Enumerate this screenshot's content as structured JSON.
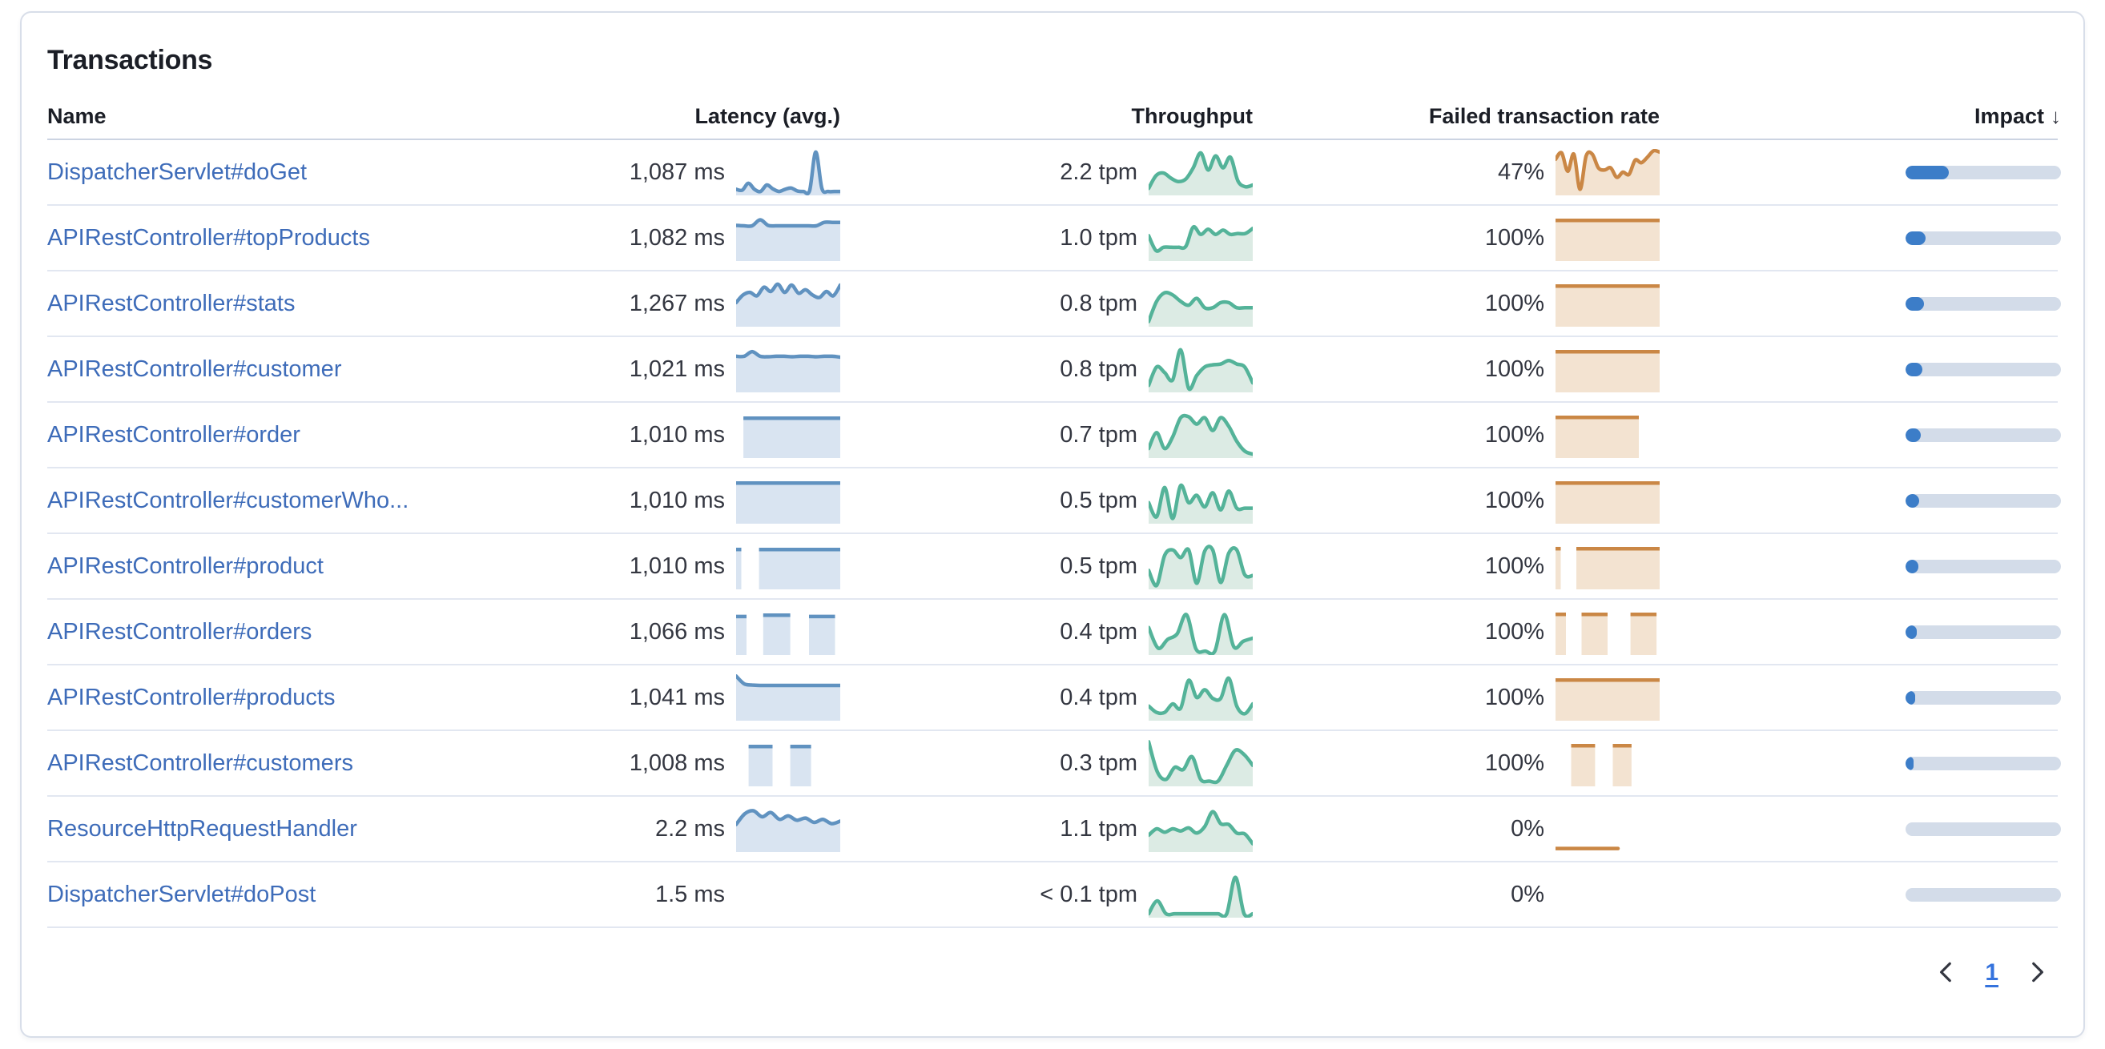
{
  "panel": {
    "title": "Transactions"
  },
  "columns": {
    "name": "Name",
    "latency": "Latency (avg.)",
    "throughput": "Throughput",
    "failed": "Failed transaction rate",
    "impact": "Impact",
    "sort_icon": "↓",
    "sorted_by": "Impact",
    "sort_direction": "desc"
  },
  "colors": {
    "latency": {
      "stroke": "#6092c0",
      "fill": "#d9e4f1"
    },
    "throughput": {
      "stroke": "#54b399",
      "fill": "#dcebe4"
    },
    "failed": {
      "stroke": "#ca8745",
      "fill": "#f3e3d1"
    },
    "impact_fill": "#3c7dc8",
    "impact_track": "#d3dce9",
    "link": "#3e6cb9"
  },
  "pagination": {
    "page": "1",
    "prev_icon": "chevron-left",
    "next_icon": "chevron-right"
  },
  "rows": [
    {
      "name": "DispatcherServlet#doGet",
      "latency": "1,087 ms",
      "throughput": "2.2 tpm",
      "failed_rate": "47%",
      "impact_pct": 28,
      "latency_spark": {
        "kind": "line",
        "points": [
          0.1,
          0.08,
          0.24,
          0.1,
          0.05,
          0.2,
          0.11,
          0.05,
          0.1,
          0.13,
          0.06,
          0.05,
          0.07,
          0.97,
          0.12,
          0.05,
          0.05,
          0.05
        ]
      },
      "throughput_spark": {
        "kind": "line",
        "points": [
          0.12,
          0.42,
          0.48,
          0.36,
          0.28,
          0.34,
          0.6,
          0.95,
          0.55,
          0.88,
          0.6,
          0.85,
          0.3,
          0.16,
          0.2
        ]
      },
      "failed_spark": {
        "kind": "line",
        "points": [
          0.8,
          0.95,
          0.52,
          0.92,
          0.1,
          0.88,
          0.92,
          0.6,
          0.55,
          0.6,
          0.38,
          0.5,
          0.45,
          0.78,
          0.72,
          0.85,
          1.0,
          0.97
        ]
      }
    },
    {
      "name": "APIRestController#topProducts",
      "latency": "1,082 ms",
      "throughput": "1.0 tpm",
      "failed_rate": "100%",
      "impact_pct": 13,
      "latency_spark": {
        "kind": "line",
        "points": [
          0.79,
          0.78,
          0.78,
          0.92,
          0.79,
          0.78,
          0.78,
          0.78,
          0.78,
          0.78,
          0.78,
          0.86,
          0.86,
          0.86
        ]
      },
      "throughput_spark": {
        "kind": "line",
        "points": [
          0.55,
          0.2,
          0.28,
          0.28,
          0.28,
          0.3,
          0.75,
          0.58,
          0.7,
          0.58,
          0.68,
          0.58,
          0.6,
          0.6,
          0.72
        ]
      },
      "failed_spark": {
        "kind": "blocks",
        "segments": [
          [
            0,
            1,
            0.95
          ]
        ]
      }
    },
    {
      "name": "APIRestController#stats",
      "latency": "1,267 ms",
      "throughput": "0.8 tpm",
      "failed_rate": "100%",
      "impact_pct": 12,
      "latency_spark": {
        "kind": "line",
        "points": [
          0.52,
          0.7,
          0.76,
          0.68,
          0.88,
          0.78,
          0.95,
          0.76,
          0.93,
          0.74,
          0.82,
          0.7,
          0.64,
          0.78,
          0.68,
          0.93
        ]
      },
      "throughput_spark": {
        "kind": "line",
        "points": [
          0.08,
          0.55,
          0.75,
          0.7,
          0.55,
          0.46,
          0.62,
          0.4,
          0.4,
          0.52,
          0.52,
          0.4,
          0.4,
          0.4
        ]
      },
      "failed_spark": {
        "kind": "blocks",
        "segments": [
          [
            0,
            1,
            0.95
          ]
        ]
      }
    },
    {
      "name": "APIRestController#customer",
      "latency": "1,021 ms",
      "throughput": "0.8 tpm",
      "failed_rate": "100%",
      "impact_pct": 11,
      "latency_spark": {
        "kind": "line",
        "points": [
          0.8,
          0.8,
          0.91,
          0.8,
          0.79,
          0.8,
          0.8,
          0.79,
          0.8,
          0.8,
          0.79,
          0.8,
          0.8,
          0.78
        ]
      },
      "throughput_spark": {
        "kind": "line",
        "points": [
          0.12,
          0.55,
          0.42,
          0.25,
          0.95,
          0.05,
          0.35,
          0.55,
          0.6,
          0.62,
          0.7,
          0.62,
          0.55,
          0.18
        ]
      },
      "failed_spark": {
        "kind": "blocks",
        "segments": [
          [
            0,
            1,
            0.95
          ]
        ]
      }
    },
    {
      "name": "APIRestController#order",
      "latency": "1,010 ms",
      "throughput": "0.7 tpm",
      "failed_rate": "100%",
      "impact_pct": 10,
      "latency_spark": {
        "kind": "blocks",
        "segments": [
          [
            0.07,
            1,
            0.93
          ]
        ]
      },
      "throughput_spark": {
        "kind": "line",
        "points": [
          0.18,
          0.55,
          0.18,
          0.45,
          0.9,
          0.92,
          0.75,
          0.9,
          0.6,
          0.9,
          0.7,
          0.35,
          0.12,
          0.05
        ]
      },
      "failed_spark": {
        "kind": "blocks",
        "segments": [
          [
            0,
            0.8,
            0.95
          ]
        ]
      }
    },
    {
      "name": "APIRestController#customerWho...",
      "latency": "1,010 ms",
      "throughput": "0.5 tpm",
      "failed_rate": "100%",
      "impact_pct": 9,
      "latency_spark": {
        "kind": "blocks",
        "segments": [
          [
            0,
            1,
            0.95
          ]
        ]
      },
      "throughput_spark": {
        "kind": "line",
        "points": [
          0.45,
          0.12,
          0.8,
          0.08,
          0.85,
          0.45,
          0.62,
          0.35,
          0.68,
          0.28,
          0.72,
          0.32,
          0.32,
          0.32
        ]
      },
      "failed_spark": {
        "kind": "blocks",
        "segments": [
          [
            0,
            1,
            0.95
          ]
        ]
      }
    },
    {
      "name": "APIRestController#product",
      "latency": "1,010 ms",
      "throughput": "0.5 tpm",
      "failed_rate": "100%",
      "impact_pct": 8,
      "latency_spark": {
        "kind": "blocks",
        "segments": [
          [
            0,
            0.05,
            0.93
          ],
          [
            0.22,
            1,
            0.93
          ]
        ]
      },
      "throughput_spark": {
        "kind": "line",
        "points": [
          0.4,
          0.05,
          0.75,
          0.88,
          0.7,
          0.88,
          0.1,
          0.85,
          0.88,
          0.12,
          0.8,
          0.88,
          0.3,
          0.28
        ]
      },
      "failed_spark": {
        "kind": "blocks",
        "segments": [
          [
            0,
            0.05,
            0.95
          ],
          [
            0.2,
            1,
            0.95
          ]
        ]
      }
    },
    {
      "name": "APIRestController#orders",
      "latency": "1,066 ms",
      "throughput": "0.4 tpm",
      "failed_rate": "100%",
      "impact_pct": 7,
      "latency_spark": {
        "kind": "blocks",
        "segments": [
          [
            0,
            0.1,
            0.9
          ],
          [
            0.26,
            0.52,
            0.93
          ],
          [
            0.7,
            0.95,
            0.9
          ]
        ]
      },
      "throughput_spark": {
        "kind": "line",
        "points": [
          0.6,
          0.12,
          0.32,
          0.45,
          0.9,
          0.1,
          0.05,
          0.05,
          0.9,
          0.15,
          0.28,
          0.35
        ]
      },
      "failed_spark": {
        "kind": "blocks",
        "segments": [
          [
            0,
            0.1,
            0.95
          ],
          [
            0.25,
            0.5,
            0.95
          ],
          [
            0.72,
            0.97,
            0.95
          ]
        ]
      }
    },
    {
      "name": "APIRestController#products",
      "latency": "1,041 ms",
      "throughput": "0.4 tpm",
      "failed_rate": "100%",
      "impact_pct": 6,
      "latency_spark": {
        "kind": "line",
        "points": [
          1.0,
          0.82,
          0.79,
          0.78,
          0.78,
          0.78,
          0.78,
          0.78,
          0.78,
          0.78,
          0.78,
          0.78,
          0.78,
          0.78
        ]
      },
      "throughput_spark": {
        "kind": "line",
        "points": [
          0.3,
          0.15,
          0.15,
          0.35,
          0.25,
          0.9,
          0.5,
          0.68,
          0.48,
          0.48,
          0.95,
          0.3,
          0.12,
          0.35
        ]
      },
      "failed_spark": {
        "kind": "blocks",
        "segments": [
          [
            0,
            1,
            0.95
          ]
        ]
      }
    },
    {
      "name": "APIRestController#customers",
      "latency": "1,008 ms",
      "throughput": "0.3 tpm",
      "failed_rate": "100%",
      "impact_pct": 5,
      "latency_spark": {
        "kind": "blocks",
        "segments": [
          [
            0.12,
            0.35,
            0.93
          ],
          [
            0.52,
            0.72,
            0.93
          ]
        ]
      },
      "throughput_spark": {
        "kind": "line",
        "points": [
          1.0,
          0.3,
          0.12,
          0.4,
          0.35,
          0.65,
          0.12,
          0.08,
          0.08,
          0.45,
          0.8,
          0.7,
          0.45
        ]
      },
      "failed_spark": {
        "kind": "blocks",
        "segments": [
          [
            0.15,
            0.38,
            0.95
          ],
          [
            0.55,
            0.73,
            0.95
          ]
        ]
      }
    },
    {
      "name": "ResourceHttpRequestHandler",
      "latency": "2.2 ms",
      "throughput": "1.1 tpm",
      "failed_rate": "0%",
      "impact_pct": 0,
      "latency_spark": {
        "kind": "line",
        "points": [
          0.6,
          0.85,
          0.92,
          0.78,
          0.88,
          0.72,
          0.8,
          0.7,
          0.75,
          0.65,
          0.72,
          0.62,
          0.68
        ]
      },
      "throughput_spark": {
        "kind": "line",
        "points": [
          0.35,
          0.5,
          0.42,
          0.5,
          0.45,
          0.52,
          0.4,
          0.55,
          0.9,
          0.62,
          0.6,
          0.4,
          0.38,
          0.15
        ]
      },
      "failed_spark": {
        "kind": "line",
        "points": [
          0.04,
          0.04,
          0.04
        ],
        "x1": 0.6,
        "noFill": true
      }
    },
    {
      "name": "DispatcherServlet#doPost",
      "latency": "1.5 ms",
      "throughput": "< 0.1 tpm",
      "failed_rate": "0%",
      "impact_pct": 0,
      "latency_spark": null,
      "throughput_spark": {
        "kind": "line",
        "points": [
          0.05,
          0.35,
          0.05,
          0.05,
          0.05,
          0.05,
          0.05,
          0.05,
          0.05,
          0.05,
          0.9,
          0.05,
          0.05
        ]
      },
      "failed_spark": null
    }
  ]
}
